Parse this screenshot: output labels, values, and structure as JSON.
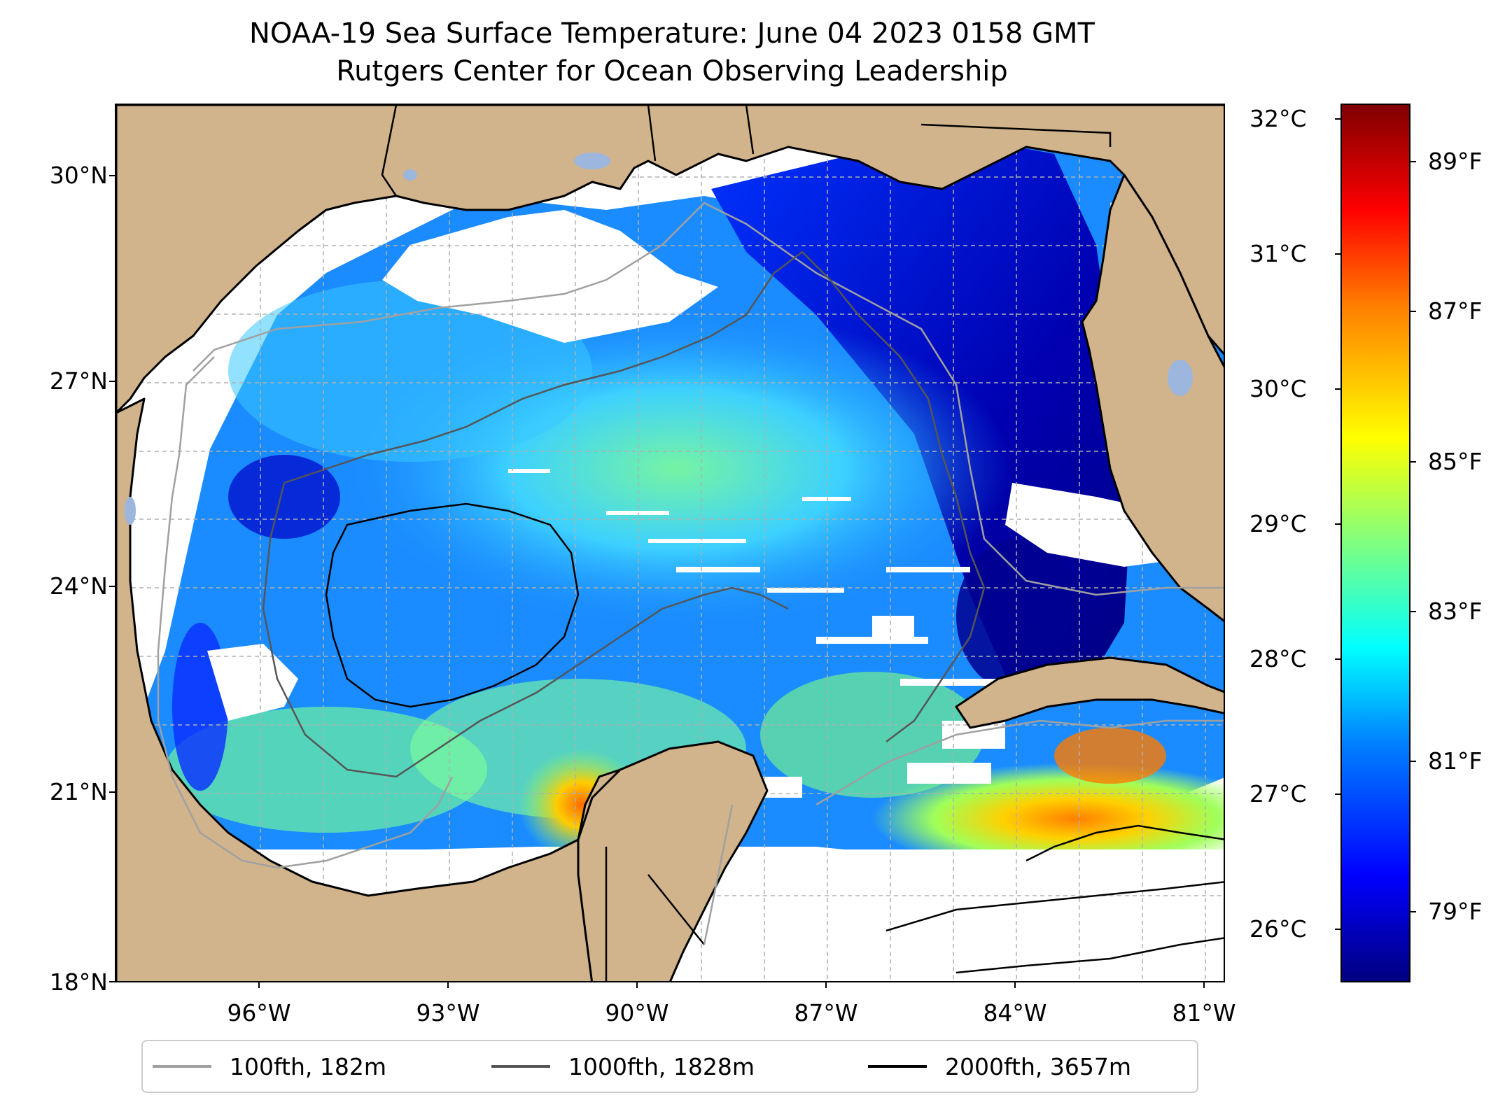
{
  "title": {
    "line1": "NOAA-19 Sea Surface Temperature: June 04 2023 0158 GMT",
    "line2": "Rutgers Center for Ocean Observing Leadership"
  },
  "map": {
    "lat_labels": [
      "30°N",
      "27°N",
      "24°N",
      "21°N",
      "18°N"
    ],
    "lon_labels": [
      "96°W",
      "93°W",
      "90°W",
      "87°W",
      "84°W",
      "81°W"
    ],
    "colors": {
      "land": "#d2b48c",
      "no_data": "#ffffff",
      "gridline": "#b0b0b0",
      "coast": "#000000",
      "lakes": "#9cb6de"
    }
  },
  "colorbar": {
    "celsius_labels": [
      "32°C",
      "31°C",
      "30°C",
      "29°C",
      "28°C",
      "27°C",
      "26°C"
    ],
    "fahrenheit_labels": [
      "89°F",
      "87°F",
      "85°F",
      "83°F",
      "81°F",
      "79°F"
    ],
    "colormap": "jet"
  },
  "legend": {
    "items": [
      {
        "label": "100fth, 182m",
        "color": "#a0a0a0"
      },
      {
        "label": "1000fth, 1828m",
        "color": "#555555"
      },
      {
        "label": "2000fth, 3657m",
        "color": "#000000"
      }
    ]
  }
}
